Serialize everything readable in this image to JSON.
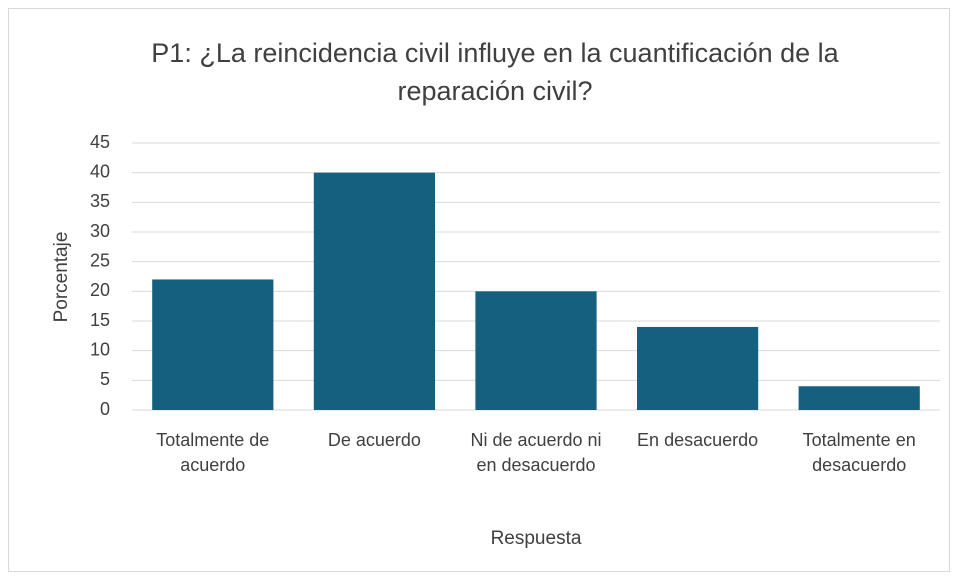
{
  "chart_data": {
    "type": "bar",
    "title": "P1: ¿La reincidencia civil influye en la cuantificación de la reparación civil?",
    "xlabel": "Respuesta",
    "ylabel": "Porcentaje",
    "categories": [
      "Totalmente de acuerdo",
      "De acuerdo",
      "Ni de acuerdo ni en desacuerdo",
      "En desacuerdo",
      "Totalmente en desacuerdo"
    ],
    "values": [
      22,
      40,
      20,
      14,
      4
    ],
    "color": "#16607f",
    "ylim": [
      0,
      45
    ],
    "yticks": [
      0,
      5,
      10,
      15,
      20,
      25,
      30,
      35,
      40,
      45
    ],
    "grid": true
  }
}
